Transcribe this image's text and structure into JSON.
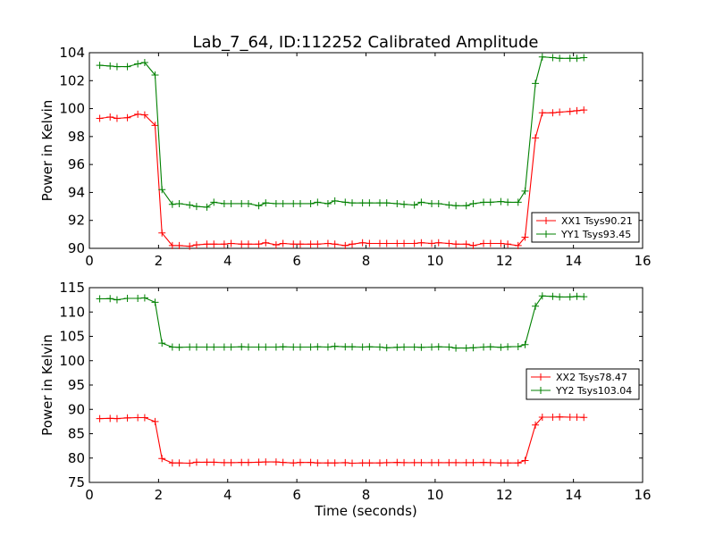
{
  "figure": {
    "title": "Lab_7_64, ID:112252 Calibrated Amplitude"
  },
  "colors": {
    "red": "#ff0000",
    "green": "#008000"
  },
  "chart_data": [
    {
      "type": "line",
      "title": "Lab_7_64, ID:112252 Calibrated Amplitude",
      "xlabel": "",
      "ylabel": "Power in Kelvin",
      "xlim": [
        0,
        16
      ],
      "ylim": [
        90,
        104
      ],
      "xticks": [
        "0",
        "2",
        "4",
        "6",
        "8",
        "10",
        "12",
        "14",
        "16"
      ],
      "yticks": [
        "90",
        "92",
        "94",
        "96",
        "98",
        "100",
        "102",
        "104"
      ],
      "legend_position": "lower-right",
      "x": [
        0.3,
        0.6,
        0.8,
        1.1,
        1.4,
        1.6,
        1.9,
        2.1,
        2.4,
        2.6,
        2.9,
        3.1,
        3.4,
        3.6,
        3.9,
        4.1,
        4.4,
        4.6,
        4.9,
        5.1,
        5.4,
        5.6,
        5.9,
        6.1,
        6.4,
        6.6,
        6.9,
        7.1,
        7.4,
        7.6,
        7.9,
        8.1,
        8.4,
        8.6,
        8.9,
        9.1,
        9.4,
        9.6,
        9.9,
        10.1,
        10.4,
        10.6,
        10.9,
        11.1,
        11.4,
        11.6,
        11.9,
        12.1,
        12.4,
        12.6,
        12.9,
        13.1,
        13.4,
        13.6,
        13.9,
        14.1,
        14.3
      ],
      "series": [
        {
          "name": "XX1 Tsys90.21",
          "color": "#ff0000",
          "values": [
            99.3,
            99.4,
            99.3,
            99.35,
            99.6,
            99.55,
            98.8,
            91.1,
            90.2,
            90.2,
            90.15,
            90.25,
            90.3,
            90.3,
            90.3,
            90.35,
            90.3,
            90.3,
            90.3,
            90.4,
            90.25,
            90.35,
            90.3,
            90.3,
            90.3,
            90.3,
            90.35,
            90.3,
            90.2,
            90.3,
            90.4,
            90.35,
            90.35,
            90.35,
            90.35,
            90.35,
            90.35,
            90.4,
            90.35,
            90.4,
            90.35,
            90.3,
            90.3,
            90.2,
            90.35,
            90.35,
            90.35,
            90.3,
            90.2,
            90.8,
            97.9,
            99.7,
            99.7,
            99.75,
            99.8,
            99.85,
            99.9
          ]
        },
        {
          "name": "YY1 Tsys93.45",
          "color": "#008000",
          "values": [
            103.1,
            103.05,
            103.0,
            103.0,
            103.2,
            103.3,
            102.4,
            94.2,
            93.15,
            93.2,
            93.1,
            93.0,
            92.95,
            93.3,
            93.2,
            93.2,
            93.2,
            93.2,
            93.05,
            93.25,
            93.2,
            93.2,
            93.2,
            93.2,
            93.2,
            93.3,
            93.2,
            93.4,
            93.3,
            93.25,
            93.25,
            93.25,
            93.25,
            93.25,
            93.2,
            93.15,
            93.1,
            93.3,
            93.2,
            93.2,
            93.1,
            93.05,
            93.05,
            93.2,
            93.3,
            93.3,
            93.35,
            93.3,
            93.3,
            94.1,
            101.8,
            103.7,
            103.65,
            103.6,
            103.6,
            103.6,
            103.65
          ]
        }
      ]
    },
    {
      "type": "line",
      "title": "",
      "xlabel": "Time (seconds)",
      "ylabel": "Power in Kelvin",
      "xlim": [
        0,
        16
      ],
      "ylim": [
        75,
        115
      ],
      "xticks": [
        "0",
        "2",
        "4",
        "6",
        "8",
        "10",
        "12",
        "14",
        "16"
      ],
      "yticks": [
        "75",
        "80",
        "85",
        "90",
        "95",
        "100",
        "105",
        "110",
        "115"
      ],
      "legend_position": "center-right",
      "x": [
        0.3,
        0.6,
        0.8,
        1.1,
        1.4,
        1.6,
        1.9,
        2.1,
        2.4,
        2.6,
        2.9,
        3.1,
        3.4,
        3.6,
        3.9,
        4.1,
        4.4,
        4.6,
        4.9,
        5.1,
        5.4,
        5.6,
        5.9,
        6.1,
        6.4,
        6.6,
        6.9,
        7.1,
        7.4,
        7.6,
        7.9,
        8.1,
        8.4,
        8.6,
        8.9,
        9.1,
        9.4,
        9.6,
        9.9,
        10.1,
        10.4,
        10.6,
        10.9,
        11.1,
        11.4,
        11.6,
        11.9,
        12.1,
        12.4,
        12.6,
        12.9,
        13.1,
        13.4,
        13.6,
        13.9,
        14.1,
        14.3
      ],
      "series": [
        {
          "name": "XX2 Tsys78.47",
          "color": "#ff0000",
          "values": [
            88.1,
            88.15,
            88.1,
            88.25,
            88.3,
            88.3,
            87.5,
            79.9,
            79.0,
            79.0,
            78.95,
            79.15,
            79.15,
            79.15,
            79.05,
            79.05,
            79.1,
            79.1,
            79.15,
            79.2,
            79.2,
            79.1,
            79.0,
            79.1,
            79.1,
            79.0,
            79.0,
            79.0,
            79.05,
            78.95,
            79.0,
            79.0,
            79.0,
            79.05,
            79.1,
            79.05,
            79.05,
            79.05,
            79.05,
            79.05,
            79.05,
            79.05,
            79.05,
            79.05,
            79.1,
            79.05,
            79.0,
            79.0,
            79.0,
            79.5,
            86.8,
            88.4,
            88.4,
            88.45,
            88.4,
            88.4,
            88.35
          ]
        },
        {
          "name": "YY2 Tsys103.04",
          "color": "#008000",
          "values": [
            112.7,
            112.75,
            112.5,
            112.8,
            112.8,
            112.9,
            112.0,
            103.6,
            102.8,
            102.75,
            102.8,
            102.8,
            102.8,
            102.8,
            102.8,
            102.8,
            102.85,
            102.8,
            102.8,
            102.8,
            102.8,
            102.85,
            102.8,
            102.8,
            102.8,
            102.85,
            102.8,
            102.95,
            102.85,
            102.85,
            102.8,
            102.85,
            102.8,
            102.65,
            102.75,
            102.8,
            102.8,
            102.75,
            102.8,
            102.85,
            102.8,
            102.6,
            102.6,
            102.65,
            102.8,
            102.85,
            102.75,
            102.85,
            102.9,
            103.3,
            111.2,
            113.3,
            113.2,
            113.1,
            113.1,
            113.2,
            113.15
          ]
        }
      ]
    }
  ]
}
